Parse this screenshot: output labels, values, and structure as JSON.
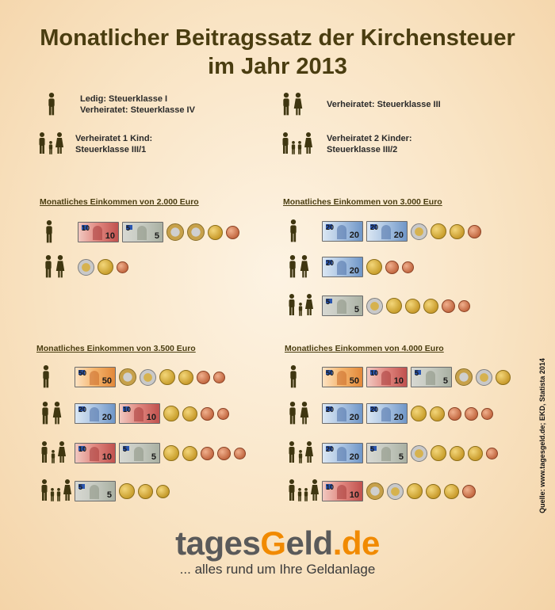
{
  "title": {
    "line1": "Monatlicher Beitragssatz der Kirchensteuer",
    "line2": "im Jahr 2013"
  },
  "legend": [
    {
      "family": "single",
      "line1": "Ledig: Steuerklasse I",
      "line2": "Verheiratet: Steuerklasse IV"
    },
    {
      "family": "couple",
      "line1": "Verheiratet: Steuerklasse III",
      "line2": ""
    },
    {
      "family": "one_child",
      "line1": "Verheiratet 1 Kind:",
      "line2": "Steuerklasse III/1"
    },
    {
      "family": "two_children",
      "line1": "Verheiratet 2 Kinder:",
      "line2": "Steuerklasse III/2"
    }
  ],
  "panels": [
    {
      "heading": "Monatliches Einkommen von 2.000 Euro",
      "rows": [
        {
          "family": "single",
          "money": [
            "note10",
            "note5",
            "c2e",
            "c2e",
            "c20",
            "c5"
          ]
        },
        {
          "family": "couple",
          "money": [
            "c1e",
            "c50",
            "c2"
          ]
        }
      ]
    },
    {
      "heading": "Monatliches Einkommen von 3.000 Euro",
      "rows": [
        {
          "family": "single",
          "money": [
            "note20",
            "note20",
            "c1e",
            "c50",
            "c20",
            "c5"
          ]
        },
        {
          "family": "couple",
          "money": [
            "note20",
            "c50",
            "c5",
            "c2"
          ]
        },
        {
          "family": "one_child",
          "money": [
            "note5",
            "c1e",
            "c50",
            "c20",
            "c20",
            "c5",
            "c2"
          ]
        }
      ]
    },
    {
      "heading": "Monatliches Einkommen von 3.500 Euro",
      "rows": [
        {
          "family": "single",
          "money": [
            "note50",
            "c2e",
            "c1e",
            "c50",
            "c20",
            "c5",
            "c2"
          ]
        },
        {
          "family": "couple",
          "money": [
            "note20",
            "note10",
            "c50",
            "c20",
            "c5",
            "c2"
          ]
        },
        {
          "family": "one_child",
          "money": [
            "note10",
            "note5",
            "c50",
            "c20",
            "c5",
            "c5",
            "c2"
          ]
        },
        {
          "family": "two_children",
          "money": [
            "note5",
            "c50",
            "c20",
            "c10"
          ]
        }
      ]
    },
    {
      "heading": "Monatliches Einkommen von 4.000 Euro",
      "rows": [
        {
          "family": "single",
          "money": [
            "note50",
            "note10",
            "note5",
            "c2e",
            "c1e",
            "c20"
          ]
        },
        {
          "family": "couple",
          "money": [
            "note20",
            "note20",
            "c50",
            "c20",
            "c5",
            "c5",
            "c2"
          ]
        },
        {
          "family": "one_child",
          "money": [
            "note20",
            "note5",
            "c1e",
            "c50",
            "c20",
            "c20",
            "c2"
          ]
        },
        {
          "family": "two_children",
          "money": [
            "note10",
            "c2e",
            "c1e",
            "c50",
            "c20",
            "c20",
            "c5"
          ]
        }
      ]
    }
  ],
  "notes": {
    "note5": "5",
    "note10": "10",
    "note20": "20",
    "note50": "50"
  },
  "source": "Quelle: www.tagesgeld.de; EKD, Statista 2014",
  "logo": {
    "part1": "tages",
    "g": "G",
    "part2": "eld",
    "tld": ".de"
  },
  "slogan": "... alles rund um Ihre Geldanlage",
  "colors": {
    "title": "#4a3d10",
    "icon": "#3f3610",
    "logo_grey": "#5a5a5a",
    "logo_orange": "#f18a00"
  }
}
